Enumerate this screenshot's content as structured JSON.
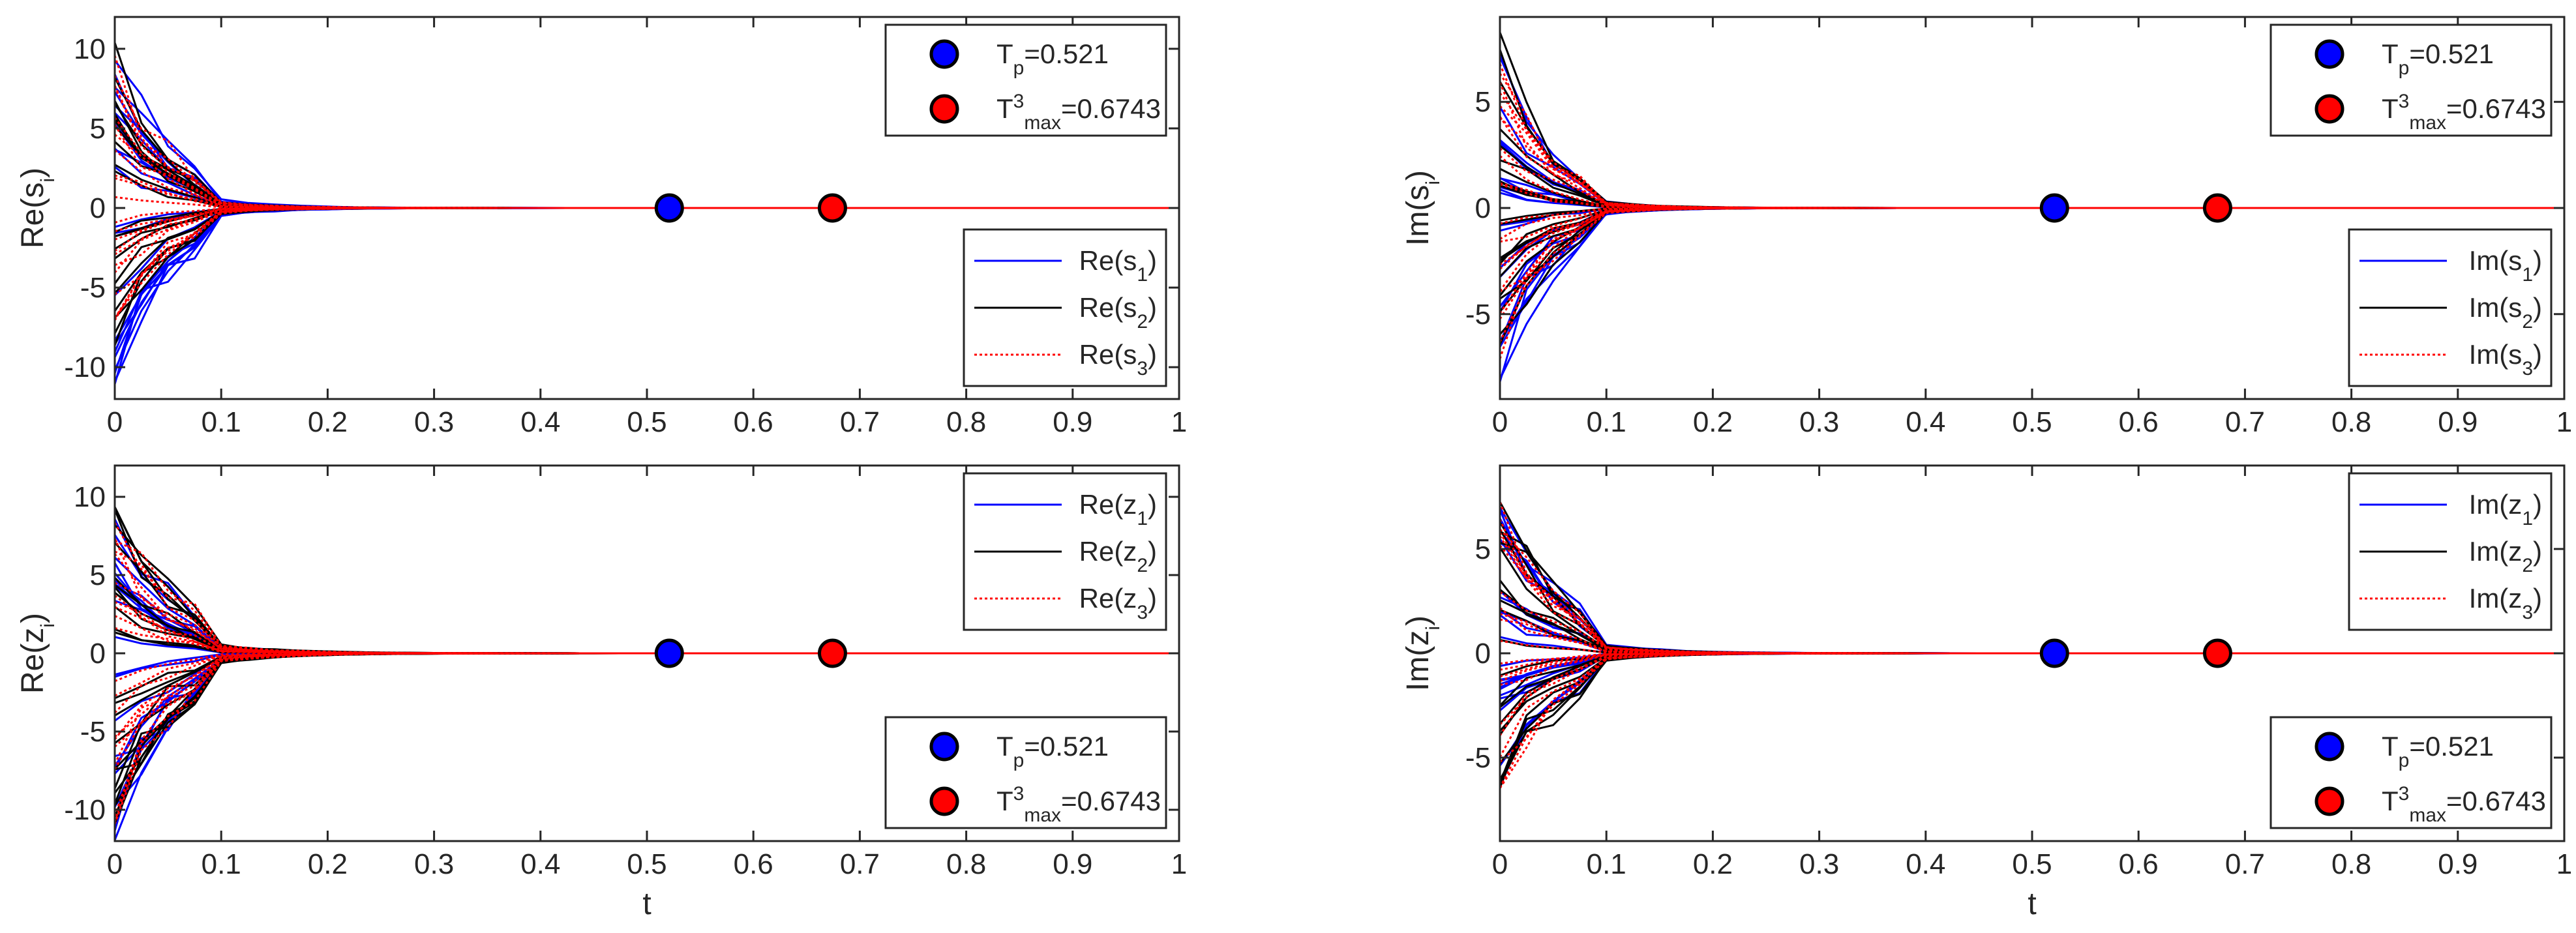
{
  "chart_data": [
    {
      "id": "re_s",
      "type": "line",
      "ylabel": "Re(s",
      "ylabel_sub": "i",
      "xlabel": "",
      "xlim": [
        0,
        1
      ],
      "ylim": [
        -12,
        12
      ],
      "xticks": [
        0,
        0.1,
        0.2,
        0.3,
        0.4,
        0.5,
        0.6,
        0.7,
        0.8,
        0.9,
        1
      ],
      "xtick_labels": [
        "0",
        "0.1",
        "0.2",
        "0.3",
        "0.4",
        "0.5",
        "0.6",
        "0.7",
        "0.8",
        "0.9",
        "1"
      ],
      "show_xtick_labels": true,
      "yticks": [
        -10,
        -5,
        0,
        5,
        10
      ],
      "ytick_labels": [
        "-10",
        "-5",
        "0",
        "5",
        "10"
      ],
      "series": [
        {
          "name": "Re(s1)",
          "color": "#0000ff",
          "style": "solid",
          "amp": 10.5,
          "lanes": 22,
          "decay": 18
        },
        {
          "name": "Re(s2)",
          "color": "#000000",
          "style": "solid",
          "amp": 10.0,
          "lanes": 22,
          "decay": 19
        },
        {
          "name": "Re(s3)",
          "color": "#ff0000",
          "style": "dotted",
          "amp": 9.5,
          "lanes": 22,
          "decay": 19
        }
      ],
      "markers": [
        {
          "label": "Tp",
          "x": 0.521,
          "y": 0,
          "color": "#0000ff"
        },
        {
          "label": "Tmax3",
          "x": 0.6743,
          "y": 0,
          "color": "#ff0000"
        }
      ],
      "marker_legend": {
        "location": "top-right",
        "entries": [
          {
            "base": "T",
            "sub": "p",
            "sup": "",
            "value": "=0.521",
            "color": "#0000ff"
          },
          {
            "base": "T",
            "sub": "max",
            "sup": "3",
            "value": "=0.6743",
            "color": "#ff0000"
          }
        ]
      },
      "series_legend": {
        "location": "bottom-right",
        "entries": [
          {
            "base": "Re(s",
            "sub": "1",
            "tail": ")",
            "color": "#0000ff",
            "style": "solid"
          },
          {
            "base": "Re(s",
            "sub": "2",
            "tail": ")",
            "color": "#000000",
            "style": "solid"
          },
          {
            "base": "Re(s",
            "sub": "3",
            "tail": ")",
            "color": "#ff0000",
            "style": "dotted"
          }
        ]
      }
    },
    {
      "id": "im_s",
      "type": "line",
      "ylabel": "Im(s",
      "ylabel_sub": "i",
      "xlabel": "",
      "xlim": [
        0,
        1
      ],
      "ylim": [
        -9,
        9
      ],
      "xticks": [
        0,
        0.1,
        0.2,
        0.3,
        0.4,
        0.5,
        0.6,
        0.7,
        0.8,
        0.9,
        1
      ],
      "xtick_labels": [
        "0",
        "0.1",
        "0.2",
        "0.3",
        "0.4",
        "0.5",
        "0.6",
        "0.7",
        "0.8",
        "0.9",
        "1"
      ],
      "show_xtick_labels": true,
      "yticks": [
        -5,
        0,
        5
      ],
      "ytick_labels": [
        "-5",
        "0",
        "5"
      ],
      "series": [
        {
          "name": "Im(s1)",
          "color": "#0000ff",
          "style": "solid",
          "amp": 8.0,
          "lanes": 22,
          "decay": 20
        },
        {
          "name": "Im(s2)",
          "color": "#000000",
          "style": "solid",
          "amp": 7.6,
          "lanes": 22,
          "decay": 20
        },
        {
          "name": "Im(s3)",
          "color": "#ff0000",
          "style": "dotted",
          "amp": 7.2,
          "lanes": 22,
          "decay": 20
        }
      ],
      "markers": [
        {
          "label": "Tp",
          "x": 0.521,
          "y": 0,
          "color": "#0000ff"
        },
        {
          "label": "Tmax3",
          "x": 0.6743,
          "y": 0,
          "color": "#ff0000"
        }
      ],
      "marker_legend": {
        "location": "top-right",
        "entries": [
          {
            "base": "T",
            "sub": "p",
            "sup": "",
            "value": "=0.521",
            "color": "#0000ff"
          },
          {
            "base": "T",
            "sub": "max",
            "sup": "3",
            "value": "=0.6743",
            "color": "#ff0000"
          }
        ]
      },
      "series_legend": {
        "location": "bottom-right",
        "entries": [
          {
            "base": "Im(s",
            "sub": "1",
            "tail": ")",
            "color": "#0000ff",
            "style": "solid"
          },
          {
            "base": "Im(s",
            "sub": "2",
            "tail": ")",
            "color": "#000000",
            "style": "solid"
          },
          {
            "base": "Im(s",
            "sub": "3",
            "tail": ")",
            "color": "#ff0000",
            "style": "dotted"
          }
        ]
      }
    },
    {
      "id": "re_z",
      "type": "line",
      "ylabel": "Re(z",
      "ylabel_sub": "i",
      "xlabel": "t",
      "xlim": [
        0,
        1
      ],
      "ylim": [
        -12,
        12
      ],
      "xticks": [
        0,
        0.1,
        0.2,
        0.3,
        0.4,
        0.5,
        0.6,
        0.7,
        0.8,
        0.9,
        1
      ],
      "xtick_labels": [
        "0",
        "0.1",
        "0.2",
        "0.3",
        "0.4",
        "0.5",
        "0.6",
        "0.7",
        "0.8",
        "0.9",
        "1"
      ],
      "show_xtick_labels": true,
      "yticks": [
        -10,
        -5,
        0,
        5,
        10
      ],
      "ytick_labels": [
        "-10",
        "-5",
        "0",
        "5",
        "10"
      ],
      "series": [
        {
          "name": "Re(z1)",
          "color": "#0000ff",
          "style": "solid",
          "amp": 10.0,
          "lanes": 22,
          "decay": 17
        },
        {
          "name": "Re(z2)",
          "color": "#000000",
          "style": "solid",
          "amp": 10.5,
          "lanes": 24,
          "decay": 16
        },
        {
          "name": "Re(z3)",
          "color": "#ff0000",
          "style": "dotted",
          "amp": 10.0,
          "lanes": 22,
          "decay": 17
        }
      ],
      "markers": [
        {
          "label": "Tp",
          "x": 0.521,
          "y": 0,
          "color": "#0000ff"
        },
        {
          "label": "Tmax3",
          "x": 0.6743,
          "y": 0,
          "color": "#ff0000"
        }
      ],
      "marker_legend": {
        "location": "bottom-right",
        "entries": [
          {
            "base": "T",
            "sub": "p",
            "sup": "",
            "value": "=0.521",
            "color": "#0000ff"
          },
          {
            "base": "T",
            "sub": "max",
            "sup": "3",
            "value": "=0.6743",
            "color": "#ff0000"
          }
        ]
      },
      "series_legend": {
        "location": "top-right",
        "entries": [
          {
            "base": "Re(z",
            "sub": "1",
            "tail": ")",
            "color": "#0000ff",
            "style": "solid"
          },
          {
            "base": "Re(z",
            "sub": "2",
            "tail": ")",
            "color": "#000000",
            "style": "solid"
          },
          {
            "base": "Re(z",
            "sub": "3",
            "tail": ")",
            "color": "#ff0000",
            "style": "dotted"
          }
        ]
      }
    },
    {
      "id": "im_z",
      "type": "line",
      "ylabel": "Im(z",
      "ylabel_sub": "i",
      "xlabel": "t",
      "xlim": [
        0,
        1
      ],
      "ylim": [
        -9,
        9
      ],
      "xticks": [
        0,
        0.1,
        0.2,
        0.3,
        0.4,
        0.5,
        0.6,
        0.7,
        0.8,
        0.9,
        1
      ],
      "xtick_labels": [
        "0",
        "0.1",
        "0.2",
        "0.3",
        "0.4",
        "0.5",
        "0.6",
        "0.7",
        "0.8",
        "0.9",
        "1"
      ],
      "show_xtick_labels": true,
      "yticks": [
        -5,
        0,
        5
      ],
      "ytick_labels": [
        "-5",
        "0",
        "5"
      ],
      "series": [
        {
          "name": "Im(z1)",
          "color": "#0000ff",
          "style": "solid",
          "amp": 8.0,
          "lanes": 24,
          "decay": 17
        },
        {
          "name": "Im(z2)",
          "color": "#000000",
          "style": "solid",
          "amp": 7.6,
          "lanes": 22,
          "decay": 18
        },
        {
          "name": "Im(z3)",
          "color": "#ff0000",
          "style": "dotted",
          "amp": 7.2,
          "lanes": 22,
          "decay": 18
        }
      ],
      "markers": [
        {
          "label": "Tp",
          "x": 0.521,
          "y": 0,
          "color": "#0000ff"
        },
        {
          "label": "Tmax3",
          "x": 0.6743,
          "y": 0,
          "color": "#ff0000"
        }
      ],
      "marker_legend": {
        "location": "bottom-right",
        "entries": [
          {
            "base": "T",
            "sub": "p",
            "sup": "",
            "value": "=0.521",
            "color": "#0000ff"
          },
          {
            "base": "T",
            "sub": "max",
            "sup": "3",
            "value": "=0.6743",
            "color": "#ff0000"
          }
        ]
      },
      "series_legend": {
        "location": "top-right",
        "entries": [
          {
            "base": "Im(z",
            "sub": "1",
            "tail": ")",
            "color": "#0000ff",
            "style": "solid"
          },
          {
            "base": "Im(z",
            "sub": "2",
            "tail": ")",
            "color": "#000000",
            "style": "solid"
          },
          {
            "base": "Im(z",
            "sub": "3",
            "tail": ")",
            "color": "#ff0000",
            "style": "dotted"
          }
        ]
      }
    }
  ]
}
